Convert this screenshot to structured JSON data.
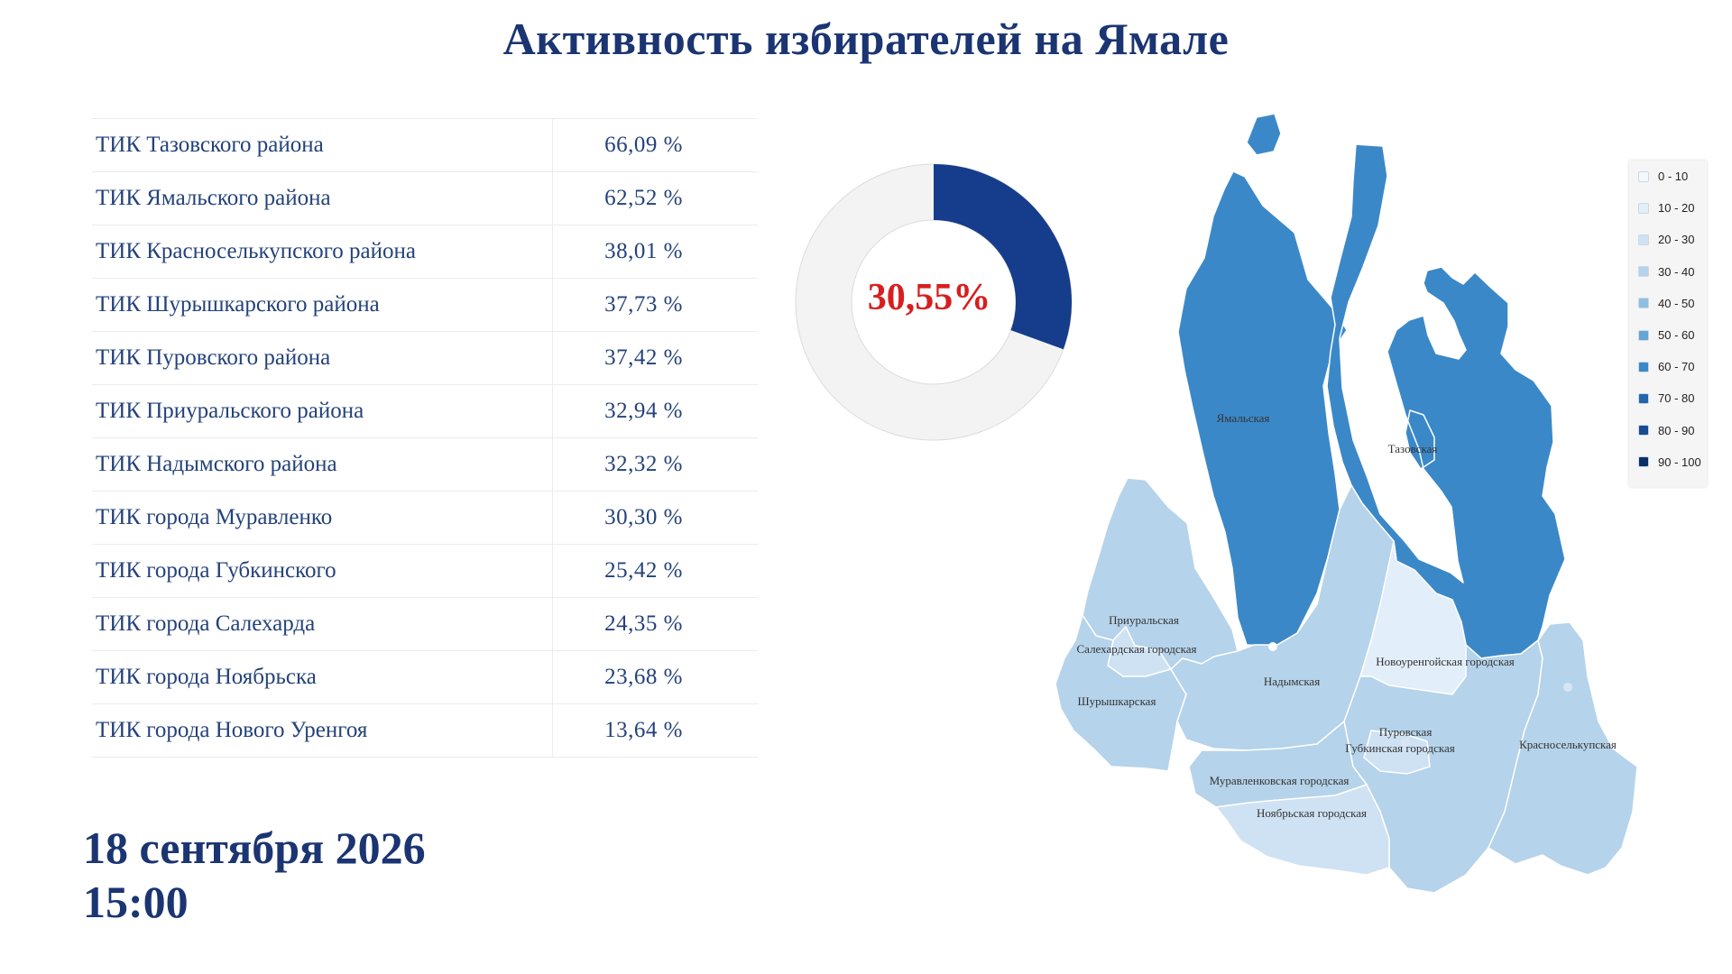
{
  "title": "Активность избирателей на Ямале",
  "table": [
    {
      "name": "ТИК Тазовского района",
      "value": "66,09 %"
    },
    {
      "name": "ТИК Ямальского района",
      "value": "62,52 %"
    },
    {
      "name": "ТИК Красноселькупского района",
      "value": "38,01 %"
    },
    {
      "name": "ТИК Шурышкарского района",
      "value": "37,73 %"
    },
    {
      "name": "ТИК Пуровского района",
      "value": "37,42 %"
    },
    {
      "name": "ТИК Приуральского района",
      "value": "32,94 %"
    },
    {
      "name": "ТИК Надымского района",
      "value": "32,32 %"
    },
    {
      "name": "ТИК города Муравленко",
      "value": "30,30 %"
    },
    {
      "name": "ТИК города Губкинского",
      "value": "25,42 %"
    },
    {
      "name": "ТИК города Салехарда",
      "value": "24,35 %"
    },
    {
      "name": "ТИК города Ноябрьска",
      "value": "23,68 %"
    },
    {
      "name": "ТИК города Нового Уренгоя",
      "value": "13,64 %"
    }
  ],
  "turnout": {
    "label": "30,55%",
    "fraction": 0.3055,
    "fill_color": "#163d8c",
    "rest_color": "#f3f3f3"
  },
  "date": {
    "day": "18 сентября 2026",
    "time": "15:00"
  },
  "map": {
    "regions": [
      {
        "name": "Ямальская",
        "bin": "60 - 70"
      },
      {
        "name": "Тазовская",
        "bin": "60 - 70"
      },
      {
        "name": "Приуральская",
        "bin": "30 - 40"
      },
      {
        "name": "Салехардская городская",
        "bin": "20 - 30"
      },
      {
        "name": "Шурышкарская",
        "bin": "30 - 40"
      },
      {
        "name": "Надымская",
        "bin": "30 - 40"
      },
      {
        "name": "Новоуренгойская городская",
        "bin": "10 - 20"
      },
      {
        "name": "Пуровская",
        "bin": "30 - 40"
      },
      {
        "name": "Губкинская городская",
        "bin": "20 - 30"
      },
      {
        "name": "Красноселькупская",
        "bin": "30 - 40"
      },
      {
        "name": "Муравленковская городская",
        "bin": "30 - 40"
      },
      {
        "name": "Ноябрьская городская",
        "bin": "20 - 30"
      }
    ],
    "colors": {
      "high": "#3b88c8",
      "low": "#b5d3ea",
      "border": "#ffffff",
      "label": "#333333"
    }
  },
  "legend": [
    {
      "label": "0 - 10",
      "color": "#f3f8fd"
    },
    {
      "label": "10 - 20",
      "color": "#e2eef9"
    },
    {
      "label": "20 - 30",
      "color": "#cfe2f3"
    },
    {
      "label": "30 - 40",
      "color": "#b5d3ea"
    },
    {
      "label": "40 - 50",
      "color": "#8fbfe0"
    },
    {
      "label": "50 - 60",
      "color": "#64a6d4"
    },
    {
      "label": "60 - 70",
      "color": "#3b88c8"
    },
    {
      "label": "70 - 80",
      "color": "#2465aa"
    },
    {
      "label": "80 - 90",
      "color": "#174b8e"
    },
    {
      "label": "90 - 100",
      "color": "#0c2f66"
    }
  ]
}
